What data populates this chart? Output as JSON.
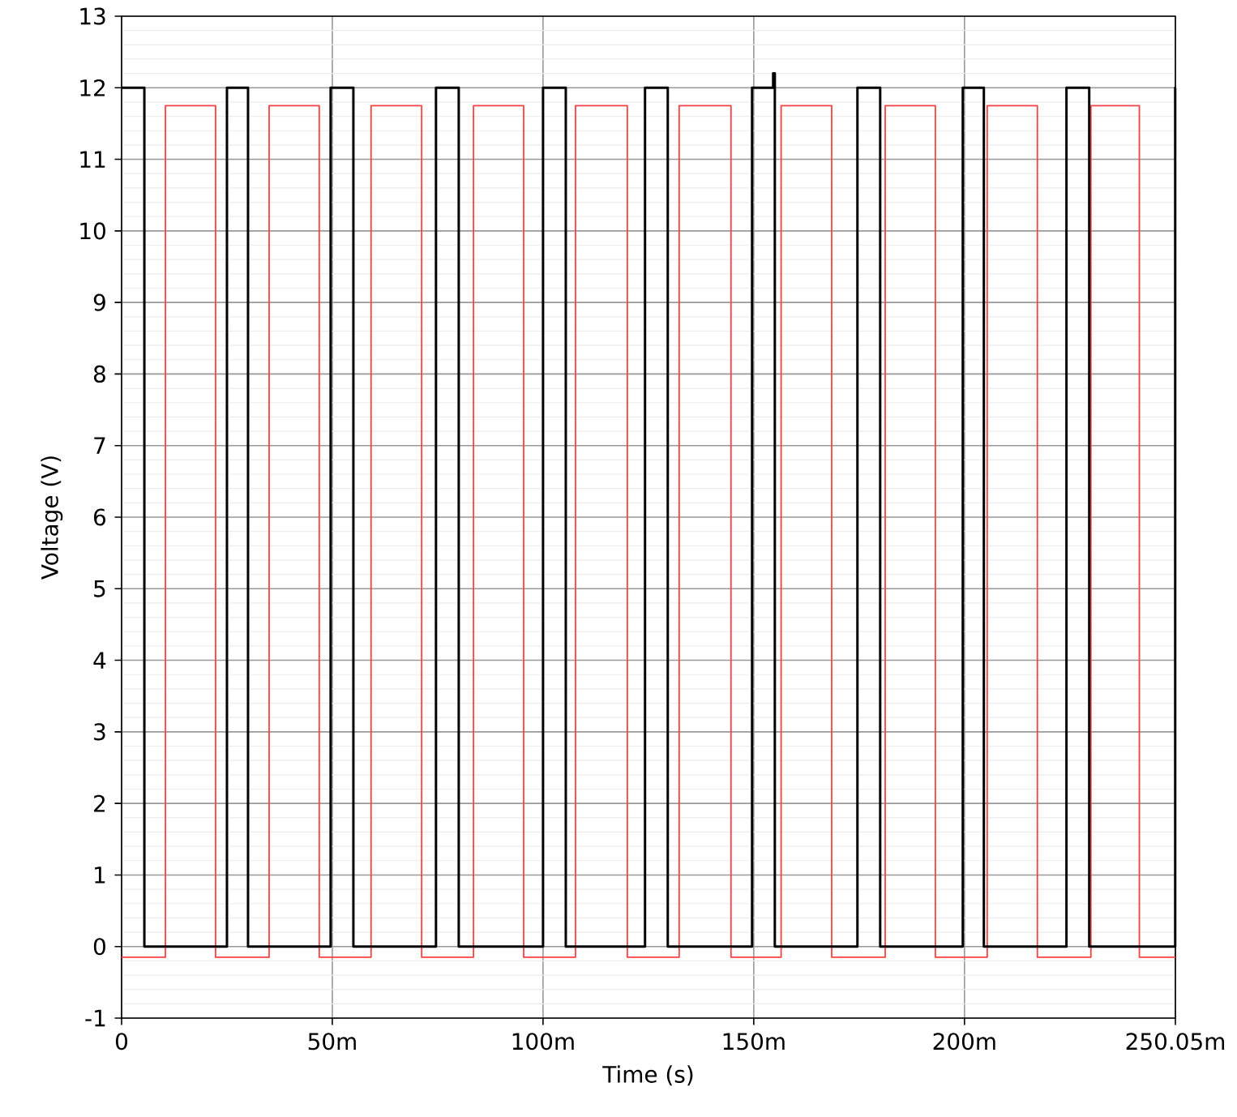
{
  "chart_data": {
    "type": "step",
    "xlabel": "Time (s)",
    "ylabel": "Voltage (V)",
    "xlim": [
      0,
      250.05
    ],
    "ylim": [
      -1,
      13
    ],
    "xticks": [
      0,
      {
        "value": 50,
        "label": "50m"
      },
      {
        "value": 100,
        "label": "100m"
      },
      {
        "value": 150,
        "label": "150m"
      },
      {
        "value": 200,
        "label": "200m"
      },
      {
        "value": 250.05,
        "label": "250.05m"
      }
    ],
    "yticks": [
      -1,
      0,
      1,
      2,
      3,
      4,
      5,
      6,
      7,
      8,
      9,
      10,
      11,
      12,
      13
    ],
    "grid": true,
    "marker": "none",
    "line_style": "solid",
    "series": [
      {
        "color": "#ff4040",
        "x": [
          0,
          10.4,
          22.3,
          35,
          46.9,
          59.2,
          71.2,
          83.5,
          95.4,
          107.7,
          120,
          132.3,
          144.6,
          156.5,
          168.5,
          181.2,
          193.1,
          205.4,
          217.3,
          230,
          241.5,
          250.05
        ],
        "values": [
          -0.15,
          11.75,
          -0.15,
          11.75,
          -0.15,
          11.75,
          -0.15,
          11.75,
          -0.15,
          11.75,
          -0.15,
          11.75,
          -0.15,
          11.75,
          -0.15,
          11.75,
          -0.15,
          11.75,
          -0.15,
          11.75,
          -0.15,
          -0.15
        ]
      },
      {
        "color": "#000000",
        "x": [
          0,
          5.4,
          25,
          30,
          49.6,
          55,
          74.6,
          80,
          100,
          105.4,
          124.2,
          129.6,
          149.6,
          154.6,
          155,
          174.6,
          180,
          199.6,
          204.6,
          224.2,
          229.6,
          250,
          250.05
        ],
        "values": [
          12,
          0,
          12,
          0,
          12,
          0,
          12,
          0,
          12,
          0,
          12,
          0,
          12,
          12.2,
          0,
          12,
          0,
          12,
          0,
          12,
          0,
          12,
          12
        ]
      }
    ]
  }
}
